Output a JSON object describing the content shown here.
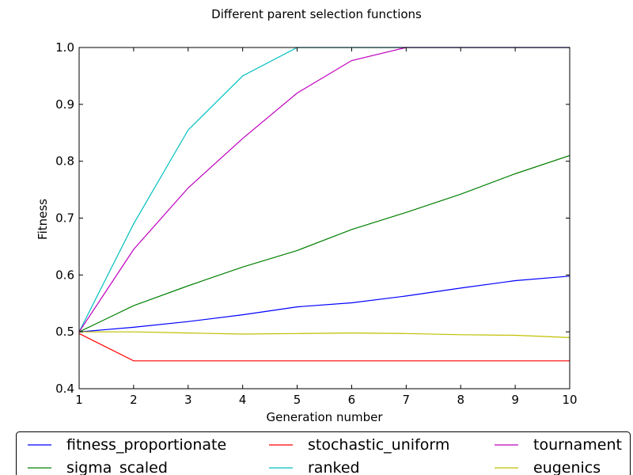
{
  "chart_data": {
    "type": "line",
    "title": "Different parent selection functions",
    "xlabel": "Generation number",
    "ylabel": "Fitness",
    "xlim": [
      1,
      10
    ],
    "ylim": [
      0.4,
      1.0
    ],
    "x": [
      1,
      2,
      3,
      4,
      5,
      6,
      7,
      8,
      9,
      10
    ],
    "xticks": [
      "1",
      "2",
      "3",
      "4",
      "5",
      "6",
      "7",
      "8",
      "9",
      "10"
    ],
    "yticks": [
      "0.4",
      "0.5",
      "0.6",
      "0.7",
      "0.8",
      "0.9",
      "1.0"
    ],
    "grid": false,
    "legend_position": "bottom",
    "series": [
      {
        "name": "fitness_proportionate",
        "color": "#0000ff",
        "values": [
          0.5,
          0.508,
          0.518,
          0.53,
          0.544,
          0.551,
          0.563,
          0.577,
          0.59,
          0.598
        ]
      },
      {
        "name": "sigma_scaled",
        "color": "#008000",
        "values": [
          0.5,
          0.546,
          0.581,
          0.614,
          0.643,
          0.68,
          0.71,
          0.742,
          0.778,
          0.81
        ]
      },
      {
        "name": "stochastic_uniform",
        "color": "#ff0000",
        "values": [
          0.497,
          0.449,
          0.449,
          0.449,
          0.449,
          0.449,
          0.449,
          0.449,
          0.449,
          0.449
        ]
      },
      {
        "name": "ranked",
        "color": "#00bfbf",
        "values": [
          0.5,
          0.69,
          0.855,
          0.95,
          1.0,
          1.0,
          1.0,
          1.0,
          1.0,
          1.0
        ]
      },
      {
        "name": "tournament",
        "color": "#bf00bf",
        "values": [
          0.5,
          0.645,
          0.753,
          0.84,
          0.92,
          0.977,
          1.0,
          1.0,
          1.0,
          1.0
        ]
      },
      {
        "name": "eugenics",
        "color": "#bfbf00",
        "values": [
          0.5,
          0.5,
          0.498,
          0.496,
          0.497,
          0.498,
          0.497,
          0.495,
          0.494,
          0.49
        ]
      }
    ]
  }
}
